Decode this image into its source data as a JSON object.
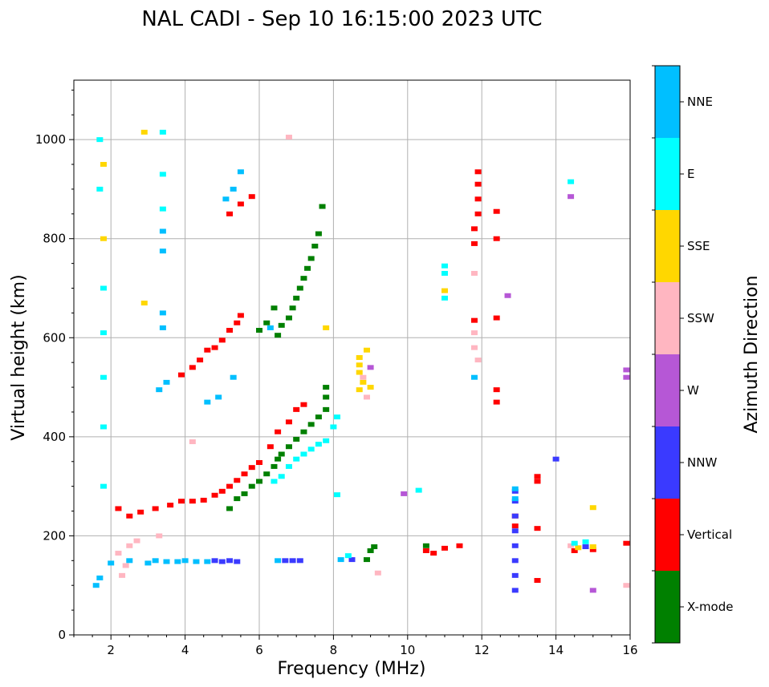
{
  "chart_data": {
    "type": "scatter",
    "title": "NAL CADI - Sep 10 16:15:00 2023 UTC",
    "xlabel": "Frequency (MHz)",
    "ylabel": "Virtual height (km)",
    "xlim": [
      1,
      16
    ],
    "ylim": [
      0,
      1120
    ],
    "xticks": [
      2,
      4,
      6,
      8,
      10,
      12,
      14,
      16
    ],
    "yticks": [
      0,
      200,
      400,
      600,
      800,
      1000
    ],
    "grid": true,
    "colorbar": {
      "label": "Azimuth Direction",
      "categories": [
        {
          "name": "X-mode",
          "color": "#008000"
        },
        {
          "name": "Vertical",
          "color": "#ff0000"
        },
        {
          "name": "NNW",
          "color": "#3a3aff"
        },
        {
          "name": "W",
          "color": "#b657d6"
        },
        {
          "name": "SSW",
          "color": "#ffb6c1"
        },
        {
          "name": "SSE",
          "color": "#ffd700"
        },
        {
          "name": "E",
          "color": "#00ffff"
        },
        {
          "name": "NNE",
          "color": "#00bfff"
        }
      ]
    },
    "series": [
      {
        "name": "X-mode",
        "points": [
          [
            5.2,
            255
          ],
          [
            5.4,
            275
          ],
          [
            5.6,
            285
          ],
          [
            5.8,
            300
          ],
          [
            6.0,
            310
          ],
          [
            6.2,
            325
          ],
          [
            6.4,
            340
          ],
          [
            6.5,
            355
          ],
          [
            6.6,
            365
          ],
          [
            6.8,
            380
          ],
          [
            7.0,
            395
          ],
          [
            7.2,
            410
          ],
          [
            7.4,
            425
          ],
          [
            7.6,
            440
          ],
          [
            7.8,
            455
          ],
          [
            7.8,
            480
          ],
          [
            7.8,
            500
          ],
          [
            6.5,
            605
          ],
          [
            6.6,
            625
          ],
          [
            6.8,
            640
          ],
          [
            6.9,
            660
          ],
          [
            7.0,
            680
          ],
          [
            7.1,
            700
          ],
          [
            7.2,
            720
          ],
          [
            7.3,
            740
          ],
          [
            7.4,
            760
          ],
          [
            7.5,
            785
          ],
          [
            7.6,
            810
          ],
          [
            7.7,
            865
          ],
          [
            6.0,
            615
          ],
          [
            6.2,
            630
          ],
          [
            6.4,
            660
          ],
          [
            10.5,
            180
          ],
          [
            9.0,
            170
          ],
          [
            9.1,
            178
          ],
          [
            8.9,
            152
          ]
        ]
      },
      {
        "name": "Vertical",
        "points": [
          [
            2.2,
            255
          ],
          [
            2.5,
            240
          ],
          [
            2.8,
            248
          ],
          [
            3.2,
            255
          ],
          [
            3.6,
            262
          ],
          [
            3.9,
            270
          ],
          [
            4.2,
            270
          ],
          [
            4.5,
            272
          ],
          [
            4.8,
            282
          ],
          [
            5.0,
            290
          ],
          [
            5.2,
            300
          ],
          [
            5.4,
            312
          ],
          [
            5.6,
            325
          ],
          [
            5.8,
            338
          ],
          [
            6.0,
            348
          ],
          [
            6.3,
            380
          ],
          [
            6.5,
            410
          ],
          [
            6.8,
            430
          ],
          [
            7.0,
            455
          ],
          [
            7.2,
            465
          ],
          [
            3.9,
            525
          ],
          [
            4.2,
            540
          ],
          [
            4.4,
            555
          ],
          [
            4.6,
            575
          ],
          [
            4.8,
            580
          ],
          [
            5.0,
            595
          ],
          [
            5.2,
            615
          ],
          [
            5.4,
            630
          ],
          [
            5.5,
            645
          ],
          [
            5.2,
            850
          ],
          [
            5.5,
            870
          ],
          [
            5.8,
            885
          ],
          [
            10.5,
            170
          ],
          [
            10.7,
            165
          ],
          [
            11.0,
            175
          ],
          [
            11.4,
            180
          ],
          [
            11.8,
            635
          ],
          [
            11.8,
            790
          ],
          [
            11.8,
            820
          ],
          [
            11.9,
            850
          ],
          [
            11.9,
            880
          ],
          [
            11.9,
            910
          ],
          [
            11.9,
            935
          ],
          [
            12.4,
            640
          ],
          [
            12.4,
            800
          ],
          [
            12.4,
            855
          ],
          [
            12.4,
            495
          ],
          [
            12.4,
            470
          ],
          [
            13.5,
            310
          ],
          [
            13.5,
            320
          ],
          [
            13.5,
            215
          ],
          [
            13.5,
            110
          ],
          [
            14.5,
            170
          ],
          [
            15.0,
            172
          ],
          [
            15.9,
            185
          ],
          [
            12.9,
            220
          ],
          [
            12.9,
            240
          ]
        ]
      },
      {
        "name": "NNW",
        "points": [
          [
            12.9,
            90
          ],
          [
            12.9,
            120
          ],
          [
            12.9,
            150
          ],
          [
            12.9,
            180
          ],
          [
            12.9,
            210
          ],
          [
            12.9,
            240
          ],
          [
            12.9,
            270
          ],
          [
            12.9,
            290
          ],
          [
            4.8,
            150
          ],
          [
            5.0,
            148
          ],
          [
            5.2,
            150
          ],
          [
            5.4,
            148
          ],
          [
            6.7,
            150
          ],
          [
            6.9,
            150
          ],
          [
            7.1,
            150
          ],
          [
            8.5,
            152
          ],
          [
            14.0,
            355
          ],
          [
            14.8,
            178
          ]
        ]
      },
      {
        "name": "W",
        "points": [
          [
            12.7,
            685
          ],
          [
            14.4,
            885
          ],
          [
            15.9,
            520
          ],
          [
            15.9,
            535
          ],
          [
            15.0,
            90
          ],
          [
            9.9,
            285
          ],
          [
            9.0,
            540
          ]
        ]
      },
      {
        "name": "SSW",
        "points": [
          [
            2.3,
            120
          ],
          [
            2.4,
            140
          ],
          [
            2.2,
            165
          ],
          [
            2.5,
            180
          ],
          [
            3.3,
            200
          ],
          [
            2.7,
            190
          ],
          [
            4.2,
            390
          ],
          [
            8.8,
            520
          ],
          [
            8.9,
            480
          ],
          [
            11.8,
            580
          ],
          [
            11.8,
            610
          ],
          [
            11.8,
            730
          ],
          [
            11.9,
            555
          ],
          [
            9.2,
            125
          ],
          [
            14.4,
            180
          ],
          [
            6.8,
            1005
          ],
          [
            15.9,
            100
          ]
        ]
      },
      {
        "name": "SSE",
        "points": [
          [
            8.7,
            560
          ],
          [
            8.7,
            545
          ],
          [
            8.7,
            530
          ],
          [
            8.8,
            510
          ],
          [
            8.7,
            495
          ],
          [
            8.9,
            575
          ],
          [
            9.0,
            500
          ],
          [
            15.0,
            257
          ],
          [
            15.0,
            178
          ],
          [
            14.6,
            176
          ],
          [
            11.0,
            695
          ],
          [
            2.9,
            670
          ],
          [
            2.9,
            1015
          ],
          [
            7.8,
            620
          ],
          [
            1.8,
            800
          ],
          [
            1.8,
            950
          ]
        ]
      },
      {
        "name": "E",
        "points": [
          [
            6.4,
            310
          ],
          [
            6.6,
            320
          ],
          [
            6.8,
            340
          ],
          [
            7.0,
            355
          ],
          [
            7.2,
            365
          ],
          [
            7.4,
            375
          ],
          [
            7.6,
            385
          ],
          [
            7.8,
            392
          ],
          [
            8.0,
            420
          ],
          [
            8.1,
            440
          ],
          [
            8.1,
            283
          ],
          [
            8.4,
            160
          ],
          [
            10.3,
            292
          ],
          [
            11.0,
            730
          ],
          [
            11.0,
            745
          ],
          [
            11.0,
            680
          ],
          [
            14.5,
            185
          ],
          [
            14.8,
            188
          ],
          [
            14.4,
            915
          ],
          [
            1.8,
            420
          ],
          [
            1.8,
            520
          ],
          [
            1.8,
            610
          ],
          [
            1.8,
            700
          ],
          [
            1.7,
            900
          ],
          [
            1.7,
            1000
          ],
          [
            1.8,
            300
          ],
          [
            3.4,
            1015
          ],
          [
            3.4,
            930
          ],
          [
            3.4,
            860
          ]
        ]
      },
      {
        "name": "NNE",
        "points": [
          [
            3.0,
            145
          ],
          [
            3.2,
            150
          ],
          [
            3.5,
            148
          ],
          [
            3.8,
            148
          ],
          [
            4.0,
            150
          ],
          [
            4.3,
            148
          ],
          [
            4.6,
            148
          ],
          [
            6.5,
            150
          ],
          [
            8.2,
            152
          ],
          [
            11.8,
            520
          ],
          [
            5.1,
            880
          ],
          [
            5.3,
            900
          ],
          [
            5.5,
            935
          ],
          [
            6.3,
            620
          ],
          [
            3.4,
            775
          ],
          [
            3.4,
            815
          ],
          [
            3.4,
            650
          ],
          [
            3.4,
            620
          ],
          [
            3.5,
            510
          ],
          [
            3.3,
            495
          ],
          [
            12.9,
            295
          ],
          [
            12.9,
            275
          ],
          [
            1.6,
            100
          ],
          [
            1.7,
            115
          ],
          [
            2.0,
            145
          ],
          [
            2.5,
            150
          ],
          [
            4.6,
            470
          ],
          [
            4.9,
            480
          ],
          [
            5.3,
            520
          ]
        ]
      }
    ]
  }
}
